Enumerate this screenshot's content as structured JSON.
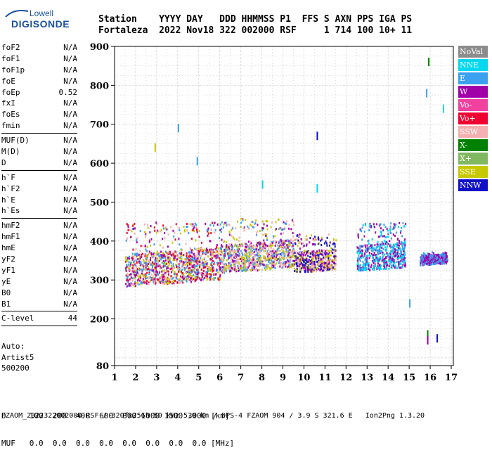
{
  "logo": {
    "line1": "Lowell",
    "line2": "DIGISONDE"
  },
  "header": {
    "line1": "Station    YYYY DAY   DDD HHMMSS P1  FFS S AXN PPS IGA PS",
    "line2": "Fortaleza  2022 Nov18 322 002000 RSF     1 714 100 10+ 11"
  },
  "params": [
    {
      "group": [
        {
          "name": "foF2",
          "value": "N/A"
        },
        {
          "name": "foF1",
          "value": "N/A"
        },
        {
          "name": "foF1p",
          "value": "N/A"
        },
        {
          "name": "foE",
          "value": "N/A"
        },
        {
          "name": "foEp",
          "value": "0.52"
        },
        {
          "name": "fxI",
          "value": "N/A"
        },
        {
          "name": "foEs",
          "value": "N/A"
        },
        {
          "name": "fmin",
          "value": "N/A"
        }
      ]
    },
    {
      "group": [
        {
          "name": "MUF(D)",
          "value": "N/A"
        },
        {
          "name": "M(D)",
          "value": "N/A"
        },
        {
          "name": "D",
          "value": "N/A"
        }
      ]
    },
    {
      "group": [
        {
          "name": "h`F",
          "value": "N/A"
        },
        {
          "name": "h`F2",
          "value": "N/A"
        },
        {
          "name": "h`E",
          "value": "N/A"
        },
        {
          "name": "h`Es",
          "value": "N/A"
        }
      ]
    },
    {
      "group": [
        {
          "name": "hmF2",
          "value": "N/A"
        },
        {
          "name": "hmF1",
          "value": "N/A"
        },
        {
          "name": "hmE",
          "value": "N/A"
        },
        {
          "name": "yF2",
          "value": "N/A"
        },
        {
          "name": "yF1",
          "value": "N/A"
        },
        {
          "name": "yE",
          "value": "N/A"
        },
        {
          "name": "B0",
          "value": "N/A"
        },
        {
          "name": "B1",
          "value": "N/A"
        }
      ]
    },
    {
      "group": [
        {
          "name": "C-level",
          "value": "44"
        }
      ]
    }
  ],
  "auto": {
    "line1": "Auto:",
    "line2": "Artist5",
    "line3": "500200"
  },
  "legend": [
    {
      "label": "NoVal",
      "color": "#8c8c8c"
    },
    {
      "label": "NNE",
      "color": "#00d8f0"
    },
    {
      "label": "E",
      "color": "#3aa0f0"
    },
    {
      "label": "W",
      "color": "#a000a8"
    },
    {
      "label": "Vo-",
      "color": "#f040a0"
    },
    {
      "label": "Vo+",
      "color": "#f00030"
    },
    {
      "label": "SSW",
      "color": "#f4b0b0"
    },
    {
      "label": "X-",
      "color": "#008000"
    },
    {
      "label": "X+",
      "color": "#80b860"
    },
    {
      "label": "SSE",
      "color": "#c8c800"
    },
    {
      "label": "NNW",
      "color": "#1010c8"
    }
  ],
  "bottom": {
    "d_row": "D     100  200  400  600  800 1000 1500 3000 [km]",
    "muf_row": "MUF   0.0  0.0  0.0  0.0  0.0  0.0  0.0  0.0 [MHz]",
    "footer": "FZAOM_2022322002000.RSF / 320fx256h 50 kHz 5.0 km / DPS-4 FZAOM 904 / 3.9 S 321.6 E   Ion2Png 1.3.20"
  },
  "chart_data": {
    "type": "scatter",
    "title": "",
    "xlabel": "",
    "ylabel": "",
    "x_ticks": [
      1,
      2,
      3,
      4,
      5,
      6,
      7,
      8,
      9,
      10,
      11,
      12,
      13,
      14,
      15,
      16,
      17
    ],
    "y_ticks": [
      80,
      200,
      300,
      400,
      500,
      600,
      700,
      800,
      900
    ],
    "xlim": [
      1,
      17.1
    ],
    "ylim": [
      80,
      900
    ],
    "grid": true,
    "clusters": [
      {
        "name": "F-layer trace 1.5-6 MHz",
        "x_range": [
          1.5,
          6.0
        ],
        "y_range": [
          265,
          450
        ],
        "dominant": [
          "W",
          "E",
          "SSE",
          "Vo+",
          "SSW"
        ]
      },
      {
        "name": "F-layer trace 6-9.5 MHz",
        "x_range": [
          6.0,
          9.5
        ],
        "y_range": [
          300,
          460
        ],
        "dominant": [
          "E",
          "SSW",
          "SSE",
          "W"
        ]
      },
      {
        "name": "F-layer trace 9.5-11.5 MHz",
        "x_range": [
          9.5,
          11.5
        ],
        "y_range": [
          300,
          420
        ],
        "dominant": [
          "NNW",
          "SSE",
          "SSW",
          "W"
        ]
      },
      {
        "name": "F-layer trace 12.5-14.8 MHz",
        "x_range": [
          12.5,
          14.8
        ],
        "y_range": [
          305,
          450
        ],
        "dominant": [
          "W",
          "E",
          "NNE"
        ]
      },
      {
        "name": "F-layer trace 15.5-16.8 MHz",
        "x_range": [
          15.5,
          16.8
        ],
        "y_range": [
          320,
          375
        ],
        "dominant": [
          "W",
          "E"
        ]
      }
    ],
    "sparse_points": [
      {
        "x": 2.9,
        "y": 640,
        "c": "SSE"
      },
      {
        "x": 4.0,
        "y": 690,
        "c": "E"
      },
      {
        "x": 4.9,
        "y": 605,
        "c": "E"
      },
      {
        "x": 8.0,
        "y": 545,
        "c": "NNE"
      },
      {
        "x": 10.6,
        "y": 670,
        "c": "NNW"
      },
      {
        "x": 10.6,
        "y": 535,
        "c": "NNE"
      },
      {
        "x": 15.0,
        "y": 240,
        "c": "E"
      },
      {
        "x": 15.8,
        "y": 780,
        "c": "E"
      },
      {
        "x": 15.9,
        "y": 860,
        "c": "X-"
      },
      {
        "x": 16.6,
        "y": 740,
        "c": "NNE"
      },
      {
        "x": 15.85,
        "y": 160,
        "c": "X-"
      },
      {
        "x": 15.85,
        "y": 145,
        "c": "W"
      },
      {
        "x": 16.3,
        "y": 150,
        "c": "NNW"
      }
    ]
  }
}
